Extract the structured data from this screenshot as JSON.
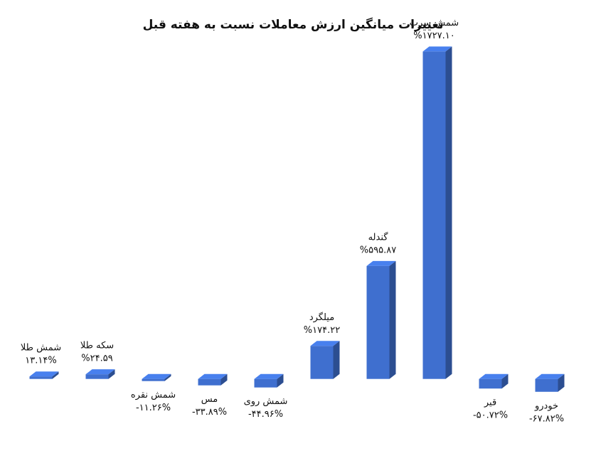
{
  "chart_data": {
    "type": "bar3d",
    "title": "تغییرات میانگین ارزش معاملات نسبت به هفته قبل",
    "categories": [
      "شمش طلا",
      "سکه طلا",
      "شمش نقره",
      "مس",
      "شمش روی",
      "میلگرد",
      "گندله",
      "شمش سرب",
      "قیر",
      "خودرو"
    ],
    "values": [
      13.14,
      24.59,
      -11.26,
      -33.89,
      -44.96,
      174.22,
      595.87,
      1727.1,
      -50.72,
      -67.82
    ],
    "value_labels": [
      "۱۳.۱۴%",
      "%۲۴.۵۹",
      "-۱۱.۲۶%",
      "-۳۳.۸۹%",
      "-۴۴.۹۶%",
      "%۱۷۴.۲۲",
      "%۵۹۵.۸۷",
      "%۱۷۲۷.۱۰",
      "-۵۰.۷۲%",
      "-۶۷.۸۲%"
    ],
    "color": "#3f6fcf",
    "ylim": [
      -200,
      1800
    ]
  }
}
